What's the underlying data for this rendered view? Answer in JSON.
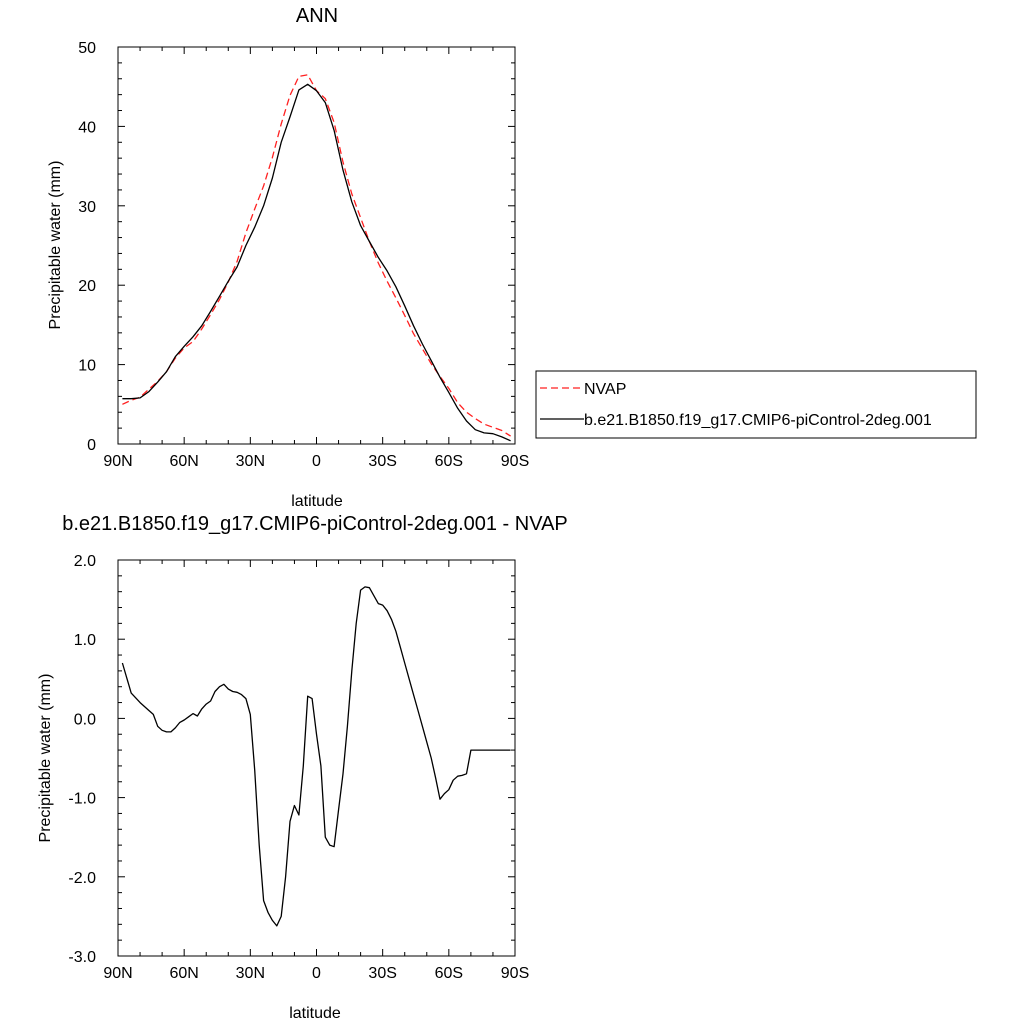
{
  "chart_data": [
    {
      "type": "line",
      "title": "ANN",
      "xlabel": "latitude",
      "ylabel": "Precipitable water (mm)",
      "x_direction": "north-to-south",
      "xlim": [
        90,
        -90
      ],
      "ylim": [
        0,
        50
      ],
      "x_ticks": [
        90,
        60,
        30,
        0,
        -30,
        -60,
        -90
      ],
      "x_tick_labels": [
        "90N",
        "60N",
        "30N",
        "0",
        "30S",
        "60S",
        "90S"
      ],
      "y_ticks": [
        0,
        10,
        20,
        30,
        40,
        50
      ],
      "y_tick_labels": [
        "0",
        "10",
        "20",
        "30",
        "40",
        "50"
      ],
      "legend_position": "right",
      "x": [
        88,
        84,
        80,
        76,
        72,
        68,
        64,
        60,
        56,
        52,
        48,
        44,
        40,
        36,
        32,
        28,
        24,
        20,
        16,
        12,
        8,
        4,
        0,
        -4,
        -8,
        -12,
        -16,
        -20,
        -24,
        -28,
        -32,
        -36,
        -40,
        -44,
        -48,
        -52,
        -56,
        -60,
        -64,
        -68,
        -72,
        -76,
        -80,
        -84,
        -88
      ],
      "series": [
        {
          "name": "NVAP",
          "color": "#ff2020",
          "dash": "dashed",
          "values": [
            5.0,
            5.5,
            5.9,
            6.9,
            7.9,
            9.1,
            10.8,
            12.1,
            12.9,
            14.5,
            16.3,
            18.2,
            20.4,
            23.0,
            26.6,
            29.6,
            32.5,
            36.1,
            40.3,
            43.9,
            46.3,
            46.5,
            44.5,
            43.5,
            40.5,
            35.5,
            31.5,
            28.5,
            25.5,
            22.8,
            20.5,
            18.4,
            16.2,
            13.9,
            12.0,
            10.1,
            8.5,
            7.0,
            5.2,
            4.0,
            3.2,
            2.5,
            2.1,
            1.7,
            1.0
          ]
        },
        {
          "name": "b.e21.B1850.f19_g17.CMIP6-piControl-2deg.001",
          "color": "#000000",
          "dash": "solid",
          "values": [
            5.7,
            5.7,
            5.8,
            6.6,
            7.8,
            9.1,
            11.0,
            12.3,
            13.5,
            14.9,
            16.7,
            18.6,
            20.5,
            22.3,
            25.0,
            27.3,
            30.0,
            33.5,
            38.0,
            41.2,
            44.6,
            45.3,
            44.5,
            43.0,
            39.5,
            34.5,
            30.5,
            27.5,
            25.5,
            23.5,
            21.8,
            19.8,
            17.4,
            14.9,
            12.6,
            10.5,
            8.4,
            6.5,
            4.5,
            2.9,
            1.8,
            1.4,
            1.3,
            0.9,
            0.4
          ]
        }
      ]
    },
    {
      "type": "line",
      "title": "b.e21.B1850.f19_g17.CMIP6-piControl-2deg.001 - NVAP",
      "xlabel": "latitude",
      "ylabel": "Precipitable water (mm)",
      "x_direction": "north-to-south",
      "xlim": [
        90,
        -90
      ],
      "ylim": [
        -3.0,
        2.0
      ],
      "x_ticks": [
        90,
        60,
        30,
        0,
        -30,
        -60,
        -90
      ],
      "x_tick_labels": [
        "90N",
        "60N",
        "30N",
        "0",
        "30S",
        "60S",
        "90S"
      ],
      "y_ticks": [
        -3.0,
        -2.0,
        -1.0,
        0.0,
        1.0,
        2.0
      ],
      "y_tick_labels": [
        "-3.0",
        "-2.0",
        "-1.0",
        "0.0",
        "1.0",
        "2.0"
      ],
      "x": [
        88,
        84,
        80,
        76,
        74,
        72,
        70,
        68,
        66,
        64,
        62,
        60,
        58,
        56,
        54,
        52,
        50,
        48,
        46,
        44,
        42,
        40,
        38,
        36,
        34,
        32,
        30,
        28,
        26,
        24,
        22,
        20,
        18,
        16,
        14,
        12,
        10,
        8,
        6,
        4,
        2,
        0,
        -2,
        -4,
        -6,
        -8,
        -10,
        -12,
        -14,
        -16,
        -18,
        -20,
        -22,
        -24,
        -26,
        -28,
        -30,
        -32,
        -34,
        -36,
        -38,
        -40,
        -42,
        -44,
        -46,
        -48,
        -50,
        -52,
        -54,
        -56,
        -58,
        -60,
        -62,
        -64,
        -66,
        -68,
        -70,
        -72,
        -74,
        -76,
        -78,
        -80,
        -82,
        -84,
        -86,
        -88
      ],
      "series": [
        {
          "color": "#000000",
          "dash": "solid",
          "values": [
            0.7,
            0.32,
            0.2,
            0.1,
            0.05,
            -0.1,
            -0.15,
            -0.17,
            -0.17,
            -0.12,
            -0.05,
            -0.02,
            0.02,
            0.06,
            0.03,
            0.12,
            0.18,
            0.22,
            0.34,
            0.4,
            0.43,
            0.37,
            0.34,
            0.33,
            0.3,
            0.25,
            0.05,
            -0.65,
            -1.6,
            -2.3,
            -2.45,
            -2.55,
            -2.62,
            -2.5,
            -2.0,
            -1.3,
            -1.1,
            -1.22,
            -0.6,
            0.28,
            0.25,
            -0.2,
            -0.6,
            -1.5,
            -1.6,
            -1.62,
            -1.15,
            -0.7,
            -0.1,
            0.6,
            1.2,
            1.62,
            1.66,
            1.65,
            1.55,
            1.45,
            1.43,
            1.36,
            1.25,
            1.1,
            0.9,
            0.7,
            0.5,
            0.3,
            0.1,
            -0.1,
            -0.3,
            -0.5,
            -0.75,
            -1.02,
            -0.95,
            -0.9,
            -0.78,
            -0.73,
            -0.72,
            -0.7,
            -0.4,
            -0.4,
            -0.4,
            -0.4,
            -0.4,
            -0.4,
            -0.4,
            -0.4,
            -0.4,
            -0.4
          ]
        }
      ]
    }
  ]
}
